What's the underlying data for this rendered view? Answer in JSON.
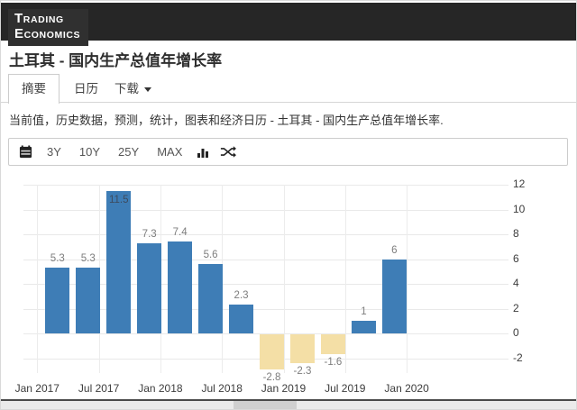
{
  "header": {
    "logo_line1": "TRADING",
    "logo_line2": "ECONOMICS"
  },
  "page": {
    "title": "土耳其 - 国内生产总值年增长率",
    "description": "当前值，历史数据，预测，统计，图表和经济日历 - 土耳其 - 国内生产总值年增长率."
  },
  "tabs": [
    {
      "label": "摘要",
      "active": true
    },
    {
      "label": "日历",
      "active": false
    },
    {
      "label": "下载",
      "active": false,
      "has_dropdown": true
    }
  ],
  "toolbar": {
    "ranges": [
      "3Y",
      "10Y",
      "25Y",
      "MAX"
    ],
    "icons": [
      "calendar-icon",
      "bar-chart-icon",
      "shuffle-icon"
    ]
  },
  "chart_data": {
    "type": "bar",
    "title": "土耳其 - 国内生产总值年增长率",
    "categories": [
      "2017 Q1",
      "2017 Q2",
      "2017 Q3",
      "2017 Q4",
      "2018 Q1",
      "2018 Q2",
      "2018 Q3",
      "2018 Q4",
      "2019 Q1",
      "2019 Q2",
      "2019 Q3",
      "2019 Q4"
    ],
    "values": [
      5.3,
      5.3,
      11.5,
      7.3,
      7.4,
      5.6,
      2.3,
      -2.8,
      -2.3,
      -1.6,
      1,
      6
    ],
    "bar_labels": [
      "5.3",
      "5.3",
      "11.5",
      "7.3",
      "7.4",
      "5.6",
      "2.3",
      "-2.8",
      "-2.3",
      "-1.6",
      "1",
      "6"
    ],
    "xticks": [
      "Jan 2017",
      "Jul 2017",
      "Jan 2018",
      "Jul 2018",
      "Jan 2019",
      "Jul 2019",
      "Jan 2020"
    ],
    "yticks": [
      12,
      10,
      8,
      6,
      4,
      2,
      0,
      -2
    ],
    "ylim": [
      -3.2,
      12.6
    ],
    "xlabel": "",
    "ylabel": "",
    "grid": true,
    "legend_position": "none",
    "positive_color": "#3e7db6",
    "negative_color": "#f4dfa6",
    "inside_label_color": "#3d4b5e",
    "label_color": "#7d7d7d"
  }
}
